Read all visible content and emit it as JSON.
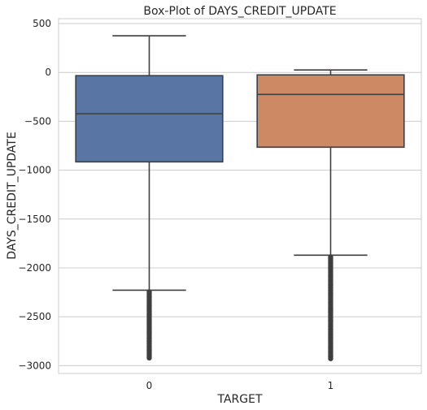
{
  "chart_data": {
    "type": "box",
    "title": "Box-Plot of DAYS_CREDIT_UPDATE",
    "xlabel": "TARGET",
    "ylabel": "DAYS_CREDIT_UPDATE",
    "categories": [
      "0",
      "1"
    ],
    "ylim": [
      -3080,
      550
    ],
    "yticks": [
      500,
      0,
      -500,
      -1000,
      -1500,
      -2000,
      -2500,
      -3000
    ],
    "ytick_labels": [
      "500",
      "0",
      "−500",
      "−1000",
      "−1500",
      "−2000",
      "−2500",
      "−3000"
    ],
    "grid": true,
    "boxes": [
      {
        "category": "0",
        "whisker_high": 375,
        "q3": -33,
        "median": -423,
        "q1": -915,
        "whisker_low": -2228,
        "outliers_range": [
          -2935,
          -2228
        ],
        "color": "#5875a4"
      },
      {
        "category": "1",
        "whisker_high": 25,
        "q3": -25,
        "median": -225,
        "q1": -765,
        "whisker_low": -1870,
        "outliers_range": [
          -2935,
          -1870
        ],
        "color": "#cc8963"
      }
    ]
  }
}
